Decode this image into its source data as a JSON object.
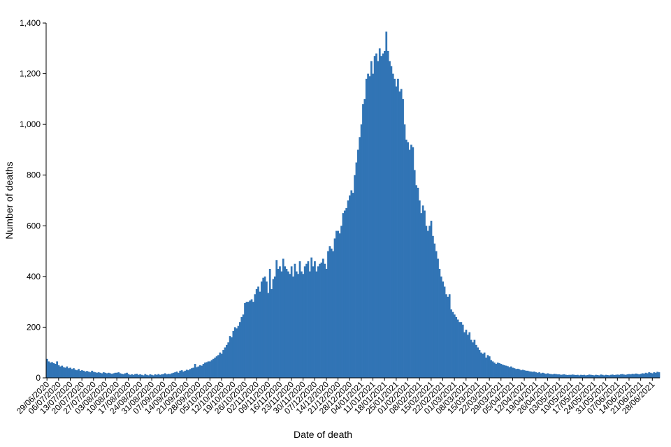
{
  "chart_data": {
    "type": "bar",
    "x_label": "Date of death",
    "y_label": "Number of deaths",
    "color": "#3174b5",
    "ylim": [
      0,
      1400
    ],
    "yticks": [
      0,
      200,
      400,
      600,
      800,
      {
        "value": 1000,
        "label": "1,000"
      },
      {
        "value": 1200,
        "label": "1,200"
      },
      {
        "value": 1400,
        "label": "1,400"
      }
    ],
    "categories": [
      "29/06/2020",
      null,
      null,
      null,
      null,
      null,
      null,
      "06/07/2020",
      null,
      null,
      null,
      null,
      null,
      null,
      "13/07/2020",
      null,
      null,
      null,
      null,
      null,
      null,
      "20/07/2020",
      null,
      null,
      null,
      null,
      null,
      null,
      "27/07/2020",
      null,
      null,
      null,
      null,
      null,
      null,
      "03/08/2020",
      null,
      null,
      null,
      null,
      null,
      null,
      "10/08/2020",
      null,
      null,
      null,
      null,
      null,
      null,
      "17/08/2020",
      null,
      null,
      null,
      null,
      null,
      null,
      "24/08/2020",
      null,
      null,
      null,
      null,
      null,
      null,
      "31/08/2020",
      null,
      null,
      null,
      null,
      null,
      null,
      "07/09/2020",
      null,
      null,
      null,
      null,
      null,
      null,
      "14/09/2020",
      null,
      null,
      null,
      null,
      null,
      null,
      "21/09/2020",
      null,
      null,
      null,
      null,
      null,
      null,
      "28/09/2020",
      null,
      null,
      null,
      null,
      null,
      null,
      "05/10/2020",
      null,
      null,
      null,
      null,
      null,
      null,
      "12/10/2020",
      null,
      null,
      null,
      null,
      null,
      null,
      "19/10/2020",
      null,
      null,
      null,
      null,
      null,
      null,
      "26/10/2020",
      null,
      null,
      null,
      null,
      null,
      null,
      "02/11/2020",
      null,
      null,
      null,
      null,
      null,
      null,
      "09/11/2020",
      null,
      null,
      null,
      null,
      null,
      null,
      "16/11/2020",
      null,
      null,
      null,
      null,
      null,
      null,
      "23/11/2020",
      null,
      null,
      null,
      null,
      null,
      null,
      "30/11/2020",
      null,
      null,
      null,
      null,
      null,
      null,
      "07/12/2020",
      null,
      null,
      null,
      null,
      null,
      null,
      "14/12/2020",
      null,
      null,
      null,
      null,
      null,
      null,
      "21/12/2020",
      null,
      null,
      null,
      null,
      null,
      null,
      "28/12/2020",
      null,
      null,
      null,
      null,
      null,
      null,
      "04/01/2021",
      null,
      null,
      null,
      null,
      null,
      null,
      "11/01/2021",
      null,
      null,
      null,
      null,
      null,
      null,
      "18/01/2021",
      null,
      null,
      null,
      null,
      null,
      null,
      "25/01/2021",
      null,
      null,
      null,
      null,
      null,
      null,
      "01/02/2021",
      null,
      null,
      null,
      null,
      null,
      null,
      "08/02/2021",
      null,
      null,
      null,
      null,
      null,
      null,
      "15/02/2021",
      null,
      null,
      null,
      null,
      null,
      null,
      "22/02/2021",
      null,
      null,
      null,
      null,
      null,
      null,
      "01/03/2021",
      null,
      null,
      null,
      null,
      null,
      null,
      "08/03/2021",
      null,
      null,
      null,
      null,
      null,
      null,
      "15/03/2021",
      null,
      null,
      null,
      null,
      null,
      null,
      "22/03/2021",
      null,
      null,
      null,
      null,
      null,
      null,
      "29/03/2021",
      null,
      null,
      null,
      null,
      null,
      null,
      "05/04/2021",
      null,
      null,
      null,
      null,
      null,
      null,
      "12/04/2021",
      null,
      null,
      null,
      null,
      null,
      null,
      "19/04/2021",
      null,
      null,
      null,
      null,
      null,
      null,
      "26/04/2021",
      null,
      null,
      null,
      null,
      null,
      null,
      "03/05/2021",
      null,
      null,
      null,
      null,
      null,
      null,
      "10/05/2021",
      null,
      null,
      null,
      null,
      null,
      null,
      "17/05/2021",
      null,
      null,
      null,
      null,
      null,
      null,
      "24/05/2021",
      null,
      null,
      null,
      null,
      null,
      null,
      "31/05/2021",
      null,
      null,
      null,
      null,
      null,
      null,
      "07/06/2021",
      null,
      null,
      null,
      null,
      null,
      null,
      "14/06/2021",
      null,
      null,
      null,
      null,
      null,
      null,
      "21/06/2021",
      null,
      null,
      null,
      null,
      null,
      null,
      "28/06/2021",
      null,
      null,
      null,
      null
    ],
    "values": [
      75,
      65,
      60,
      62,
      58,
      55,
      65,
      50,
      45,
      48,
      42,
      40,
      45,
      38,
      40,
      35,
      38,
      32,
      30,
      35,
      28,
      30,
      28,
      25,
      27,
      25,
      22,
      28,
      24,
      22,
      20,
      22,
      20,
      18,
      22,
      20,
      18,
      20,
      18,
      16,
      18,
      20,
      20,
      22,
      18,
      16,
      15,
      18,
      20,
      15,
      12,
      14,
      12,
      15,
      16,
      12,
      14,
      12,
      10,
      15,
      12,
      10,
      14,
      12,
      10,
      14,
      12,
      15,
      12,
      14,
      15,
      18,
      14,
      16,
      15,
      18,
      20,
      22,
      25,
      20,
      28,
      30,
      25,
      28,
      32,
      30,
      35,
      38,
      40,
      55,
      42,
      45,
      50,
      48,
      55,
      60,
      62,
      65,
      65,
      70,
      75,
      80,
      85,
      90,
      100,
      95,
      110,
      120,
      130,
      140,
      165,
      160,
      185,
      200,
      195,
      205,
      220,
      240,
      250,
      295,
      300,
      300,
      305,
      310,
      300,
      330,
      350,
      360,
      340,
      380,
      395,
      400,
      380,
      335,
      430,
      350,
      390,
      400,
      465,
      430,
      440,
      420,
      470,
      440,
      430,
      420,
      410,
      440,
      400,
      450,
      420,
      410,
      460,
      420,
      410,
      440,
      450,
      460,
      420,
      475,
      440,
      460,
      420,
      440,
      450,
      455,
      470,
      450,
      430,
      500,
      520,
      510,
      500,
      550,
      580,
      580,
      570,
      600,
      650,
      660,
      670,
      700,
      720,
      740,
      730,
      800,
      850,
      900,
      950,
      1000,
      1080,
      1100,
      1180,
      1200,
      1190,
      1250,
      1200,
      1270,
      1280,
      1250,
      1300,
      1270,
      1280,
      1290,
      1366,
      1290,
      1250,
      1230,
      1200,
      1180,
      1150,
      1180,
      1130,
      1140,
      1100,
      1000,
      940,
      930,
      900,
      920,
      910,
      820,
      760,
      750,
      700,
      650,
      680,
      660,
      600,
      580,
      600,
      620,
      560,
      530,
      500,
      470,
      430,
      400,
      380,
      360,
      330,
      320,
      330,
      270,
      260,
      250,
      240,
      230,
      220,
      220,
      210,
      180,
      190,
      170,
      180,
      150,
      140,
      150,
      130,
      120,
      110,
      100,
      95,
      100,
      80,
      90,
      85,
      70,
      65,
      60,
      55,
      60,
      58,
      55,
      52,
      50,
      48,
      46,
      42,
      45,
      40,
      38,
      35,
      36,
      34,
      30,
      32,
      30,
      28,
      28,
      26,
      25,
      24,
      25,
      22,
      20,
      22,
      18,
      20,
      18,
      16,
      18,
      16,
      15,
      14,
      16,
      15,
      14,
      14,
      12,
      13,
      14,
      12,
      11,
      12,
      12,
      13,
      12,
      11,
      12,
      10,
      12,
      11,
      12,
      10,
      11,
      13,
      12,
      11,
      10,
      12,
      11,
      10,
      13,
      12,
      10,
      12,
      11,
      10,
      12,
      13,
      11,
      12,
      13,
      12,
      14,
      15,
      13,
      12,
      14,
      15,
      14,
      16,
      15,
      17,
      16,
      14,
      16,
      18,
      17,
      20,
      18,
      22,
      20,
      18,
      22,
      20,
      24,
      22
    ]
  }
}
